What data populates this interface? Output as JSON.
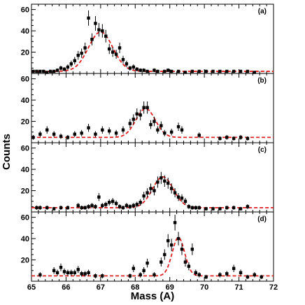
{
  "chart_data": {
    "type": "scatter",
    "xlabel": "Mass (A)",
    "ylabel": "Counts",
    "xlim": [
      65,
      72
    ],
    "ylim": [
      0,
      65
    ],
    "x_ticks": [
      65,
      66,
      67,
      68,
      69,
      70,
      71,
      72
    ],
    "y_ticks": [
      20,
      40,
      60
    ],
    "colors": {
      "data": "#000000",
      "fit": "#e02020"
    },
    "panels": [
      {
        "label": "(a)",
        "fit": {
          "mu": 67.0,
          "sigma": 0.35,
          "amp": 37,
          "base": 2
        },
        "points": [
          [
            65.05,
            2
          ],
          [
            65.15,
            2
          ],
          [
            65.25,
            2
          ],
          [
            65.35,
            2
          ],
          [
            65.45,
            1
          ],
          [
            65.55,
            2
          ],
          [
            65.65,
            2
          ],
          [
            65.75,
            3
          ],
          [
            65.85,
            5
          ],
          [
            65.95,
            4
          ],
          [
            66.05,
            6
          ],
          [
            66.15,
            9
          ],
          [
            66.25,
            12
          ],
          [
            66.35,
            17
          ],
          [
            66.45,
            19
          ],
          [
            66.55,
            24
          ],
          [
            66.65,
            52
          ],
          [
            66.75,
            32
          ],
          [
            66.85,
            47
          ],
          [
            66.95,
            41
          ],
          [
            67.05,
            40
          ],
          [
            67.15,
            35
          ],
          [
            67.25,
            23
          ],
          [
            67.35,
            20
          ],
          [
            67.45,
            18
          ],
          [
            67.55,
            24
          ],
          [
            67.65,
            13
          ],
          [
            67.75,
            9
          ],
          [
            67.85,
            5
          ],
          [
            67.95,
            6
          ],
          [
            68.05,
            4
          ],
          [
            68.15,
            3
          ],
          [
            68.25,
            3
          ],
          [
            68.35,
            2
          ],
          [
            68.55,
            3
          ],
          [
            68.65,
            2
          ],
          [
            68.85,
            2
          ],
          [
            68.95,
            3
          ],
          [
            69.05,
            2
          ],
          [
            69.25,
            2
          ],
          [
            69.45,
            1
          ],
          [
            69.65,
            2
          ],
          [
            69.85,
            2
          ],
          [
            70.05,
            2
          ],
          [
            70.25,
            2
          ],
          [
            70.45,
            2
          ],
          [
            70.65,
            2
          ],
          [
            70.85,
            2
          ],
          [
            71.05,
            2
          ],
          [
            71.25,
            2
          ],
          [
            71.45,
            1
          ]
        ]
      },
      {
        "label": "(b)",
        "fit": {
          "mu": 68.3,
          "sigma": 0.28,
          "amp": 27,
          "base": 5
        },
        "points": [
          [
            65.05,
            5
          ],
          [
            65.25,
            8
          ],
          [
            65.45,
            12
          ],
          [
            65.65,
            8
          ],
          [
            65.85,
            6
          ],
          [
            66.05,
            5
          ],
          [
            66.25,
            8
          ],
          [
            66.45,
            9
          ],
          [
            66.65,
            14
          ],
          [
            66.85,
            8
          ],
          [
            67.05,
            12
          ],
          [
            67.25,
            11
          ],
          [
            67.45,
            9
          ],
          [
            67.65,
            12
          ],
          [
            67.85,
            18
          ],
          [
            67.95,
            22
          ],
          [
            68.05,
            27
          ],
          [
            68.15,
            26
          ],
          [
            68.25,
            33
          ],
          [
            68.35,
            33
          ],
          [
            68.45,
            17
          ],
          [
            68.55,
            20
          ],
          [
            68.65,
            12
          ],
          [
            68.75,
            16
          ],
          [
            68.85,
            9
          ],
          [
            69.05,
            10
          ],
          [
            69.25,
            15
          ],
          [
            69.35,
            12
          ],
          [
            69.85,
            7
          ],
          [
            70.45,
            4
          ],
          [
            70.65,
            5
          ],
          [
            70.85,
            4
          ],
          [
            71.05,
            5
          ],
          [
            71.25,
            4
          ]
        ]
      },
      {
        "label": "(c)",
        "fit": {
          "mu": 68.8,
          "sigma": 0.3,
          "amp": 29,
          "base": 4
        },
        "points": [
          [
            65.15,
            4
          ],
          [
            65.25,
            4
          ],
          [
            65.45,
            4
          ],
          [
            65.65,
            3
          ],
          [
            65.85,
            4
          ],
          [
            66.05,
            4
          ],
          [
            66.35,
            6
          ],
          [
            66.45,
            4
          ],
          [
            66.55,
            4
          ],
          [
            66.65,
            5
          ],
          [
            66.75,
            6
          ],
          [
            66.85,
            5
          ],
          [
            66.95,
            14
          ],
          [
            67.05,
            6
          ],
          [
            67.15,
            7
          ],
          [
            67.25,
            9
          ],
          [
            67.35,
            10
          ],
          [
            67.45,
            8
          ],
          [
            67.55,
            5
          ],
          [
            67.65,
            4
          ],
          [
            67.75,
            6
          ],
          [
            67.85,
            5
          ],
          [
            67.95,
            6
          ],
          [
            68.05,
            7
          ],
          [
            68.15,
            9
          ],
          [
            68.25,
            15
          ],
          [
            68.35,
            18
          ],
          [
            68.45,
            22
          ],
          [
            68.55,
            20
          ],
          [
            68.65,
            28
          ],
          [
            68.75,
            32
          ],
          [
            68.85,
            29
          ],
          [
            68.95,
            27
          ],
          [
            69.05,
            22
          ],
          [
            69.15,
            18
          ],
          [
            69.25,
            14
          ],
          [
            69.35,
            13
          ],
          [
            69.45,
            10
          ],
          [
            69.55,
            5
          ],
          [
            69.65,
            4
          ],
          [
            69.75,
            4
          ],
          [
            69.85,
            4
          ],
          [
            70.05,
            3
          ],
          [
            70.25,
            3
          ],
          [
            70.45,
            3
          ],
          [
            70.65,
            4
          ],
          [
            70.85,
            4
          ],
          [
            71.05,
            3
          ],
          [
            71.25,
            5
          ]
        ]
      },
      {
        "label": "(d)",
        "fit": {
          "mu": 69.25,
          "sigma": 0.18,
          "amp": 36,
          "base": 5
        },
        "points": [
          [
            65.25,
            6
          ],
          [
            65.65,
            10
          ],
          [
            65.75,
            8
          ],
          [
            65.85,
            13
          ],
          [
            65.95,
            9
          ],
          [
            66.05,
            8
          ],
          [
            66.15,
            8
          ],
          [
            66.25,
            8
          ],
          [
            66.35,
            11
          ],
          [
            66.45,
            7
          ],
          [
            66.55,
            7
          ],
          [
            66.65,
            8
          ],
          [
            66.85,
            5
          ],
          [
            67.05,
            5
          ],
          [
            67.85,
            5
          ],
          [
            67.95,
            12
          ],
          [
            68.15,
            6
          ],
          [
            68.25,
            10
          ],
          [
            68.35,
            17
          ],
          [
            68.55,
            6
          ],
          [
            68.75,
            18
          ],
          [
            68.85,
            25
          ],
          [
            68.95,
            38
          ],
          [
            69.05,
            34
          ],
          [
            69.15,
            55
          ],
          [
            69.25,
            40
          ],
          [
            69.35,
            30
          ],
          [
            69.45,
            18
          ],
          [
            69.55,
            14
          ],
          [
            69.65,
            30
          ],
          [
            69.75,
            8
          ],
          [
            69.85,
            6
          ],
          [
            70.05,
            4
          ],
          [
            70.45,
            6
          ],
          [
            70.65,
            7
          ],
          [
            70.85,
            12
          ],
          [
            71.05,
            8
          ],
          [
            71.25,
            4
          ],
          [
            71.45,
            6
          ],
          [
            71.65,
            4
          ]
        ]
      }
    ]
  }
}
